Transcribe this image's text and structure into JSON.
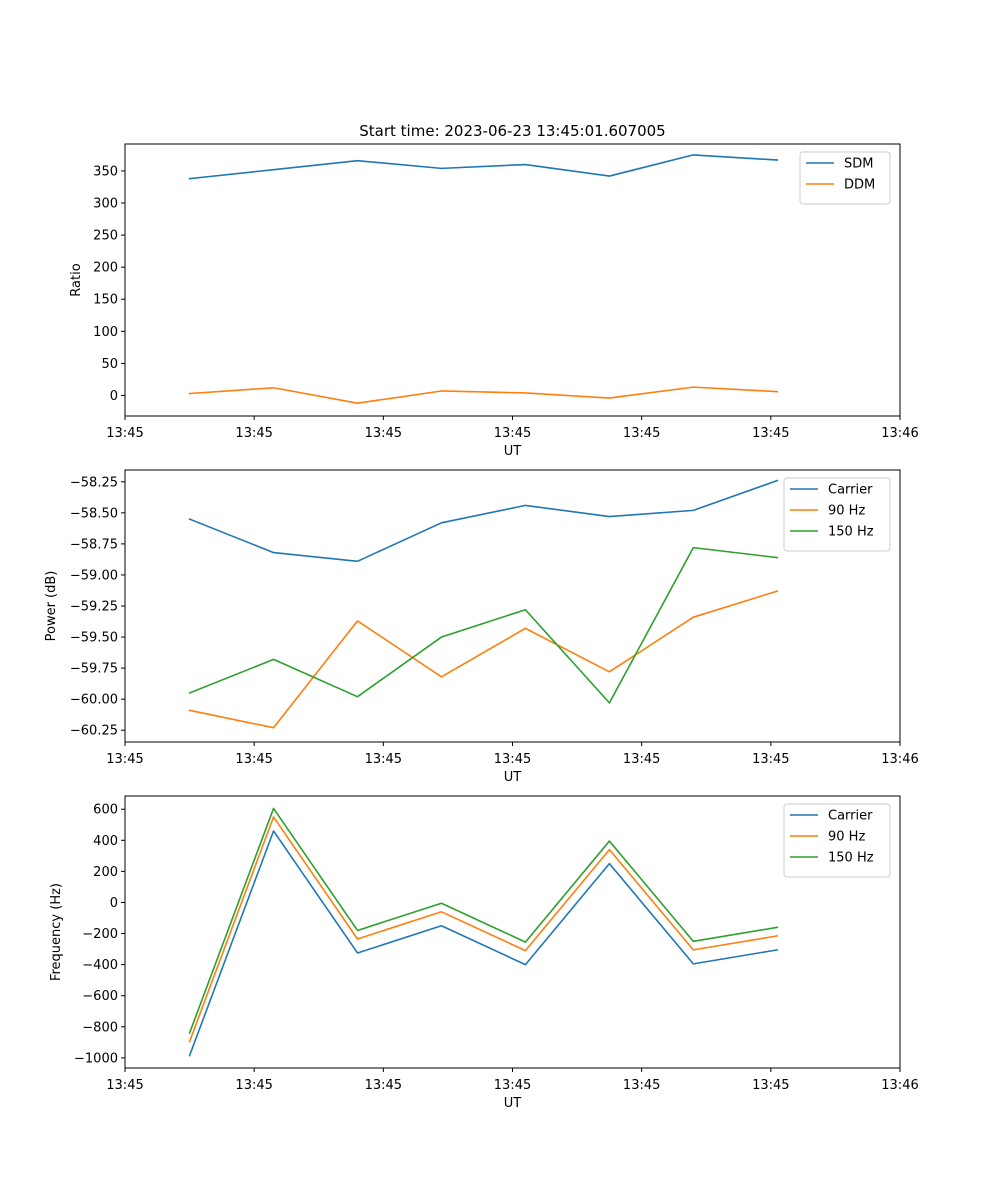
{
  "figure": {
    "title": "Start time: 2023-06-23 13:45:01.607005"
  },
  "chart_data": [
    {
      "type": "line",
      "title": "Start time: 2023-06-23 13:45:01.607005",
      "xlabel": "UT",
      "ylabel": "Ratio",
      "x_ticks": [
        "13:45",
        "13:45",
        "13:45",
        "13:45",
        "13:45",
        "13:45",
        "13:46"
      ],
      "xlim": [
        0,
        6
      ],
      "x": [
        0.5,
        1.15,
        1.8,
        2.45,
        3.1,
        3.75,
        4.4,
        5.05
      ],
      "ylim": [
        -32,
        392
      ],
      "y_ticks": [
        0,
        50,
        100,
        150,
        200,
        250,
        300,
        350
      ],
      "legend_position": "top-right",
      "grid": false,
      "series": [
        {
          "name": "SDM",
          "color": "#1f77b4",
          "values": [
            338,
            352,
            366,
            354,
            360,
            342,
            375,
            367
          ]
        },
        {
          "name": "DDM",
          "color": "#ff7f0e",
          "values": [
            3,
            12,
            -12,
            7,
            4,
            -4,
            13,
            6
          ]
        }
      ]
    },
    {
      "type": "line",
      "xlabel": "UT",
      "ylabel": "Power (dB)",
      "x_ticks": [
        "13:45",
        "13:45",
        "13:45",
        "13:45",
        "13:45",
        "13:45",
        "13:46"
      ],
      "xlim": [
        0,
        6
      ],
      "x": [
        0.5,
        1.15,
        1.8,
        2.45,
        3.1,
        3.75,
        4.4,
        5.05
      ],
      "ylim": [
        -60.345,
        -58.155
      ],
      "y_ticks": [
        -60.25,
        -60.0,
        -59.75,
        -59.5,
        -59.25,
        -59.0,
        -58.75,
        -58.5,
        -58.25
      ],
      "legend_position": "top-right",
      "grid": false,
      "series": [
        {
          "name": "Carrier",
          "color": "#1f77b4",
          "values": [
            -58.55,
            -58.82,
            -58.89,
            -58.58,
            -58.44,
            -58.53,
            -58.48,
            -58.24
          ]
        },
        {
          "name": "90 Hz",
          "color": "#ff7f0e",
          "values": [
            -60.09,
            -60.23,
            -59.37,
            -59.82,
            -59.43,
            -59.78,
            -59.34,
            -59.13
          ]
        },
        {
          "name": "150 Hz",
          "color": "#2ca02c",
          "values": [
            -59.95,
            -59.68,
            -59.98,
            -59.5,
            -59.28,
            -60.03,
            -58.78,
            -58.86
          ]
        }
      ]
    },
    {
      "type": "line",
      "xlabel": "UT",
      "ylabel": "Frequency (Hz)",
      "x_ticks": [
        "13:45",
        "13:45",
        "13:45",
        "13:45",
        "13:45",
        "13:45",
        "13:46"
      ],
      "xlim": [
        0,
        6
      ],
      "x": [
        0.5,
        1.15,
        1.8,
        2.45,
        3.1,
        3.75,
        4.4,
        5.05
      ],
      "ylim": [
        -1065,
        685
      ],
      "y_ticks": [
        -1000,
        -800,
        -600,
        -400,
        -200,
        0,
        200,
        400,
        600
      ],
      "legend_position": "top-right",
      "grid": false,
      "series": [
        {
          "name": "Carrier",
          "color": "#1f77b4",
          "values": [
            -985,
            460,
            -325,
            -150,
            -400,
            250,
            -395,
            -305
          ]
        },
        {
          "name": "90 Hz",
          "color": "#ff7f0e",
          "values": [
            -895,
            550,
            -235,
            -60,
            -310,
            340,
            -305,
            -215
          ]
        },
        {
          "name": "150 Hz",
          "color": "#2ca02c",
          "values": [
            -840,
            605,
            -180,
            -5,
            -255,
            395,
            -250,
            -160
          ]
        }
      ]
    }
  ]
}
